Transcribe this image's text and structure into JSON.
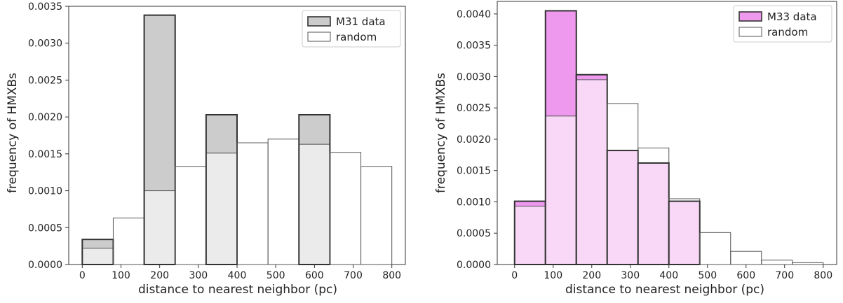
{
  "chart_data": [
    {
      "type": "bar",
      "bin_edges": [
        0,
        80,
        160,
        240,
        320,
        400,
        480,
        560,
        640,
        720,
        800
      ],
      "xlabel": "distance to nearest neighbor (pc)",
      "ylabel": "frequency of HMXBs",
      "xlim": [
        -35,
        835
      ],
      "ylim": [
        0,
        0.0035
      ],
      "xticks": [
        0,
        100,
        200,
        300,
        400,
        500,
        600,
        700,
        800
      ],
      "xtick_labels": [
        "0",
        "100",
        "200",
        "300",
        "400",
        "500",
        "600",
        "700",
        "800"
      ],
      "yticks": [
        0,
        0.0005,
        0.001,
        0.0015,
        0.002,
        0.0025,
        0.003,
        0.0035
      ],
      "ytick_labels": [
        "0.0000",
        "0.0005",
        "0.0010",
        "0.0015",
        "0.0020",
        "0.0025",
        "0.0030",
        "0.0035"
      ],
      "legend_position": "top-right",
      "grid": false,
      "series": [
        {
          "name": "M31 data",
          "values": [
            0.00034,
            0,
            0.00338,
            0,
            0.00203,
            0,
            0,
            0.00203,
            0,
            0
          ],
          "color": "#cccccc",
          "edge": "#333333"
        },
        {
          "name": "random",
          "values": [
            0.00022,
            0.00063,
            0.001,
            0.00133,
            0.00151,
            0.00165,
            0.0017,
            0.00163,
            0.00152,
            0.00133
          ],
          "color": "#ffffff",
          "edge": "#555555"
        }
      ],
      "overlap_color": "#ebebeb"
    },
    {
      "type": "bar",
      "bin_edges": [
        0,
        80,
        160,
        240,
        320,
        400,
        480,
        560,
        640,
        720,
        800
      ],
      "xlabel": "distance to nearest neighbor (pc)",
      "ylabel": "frequency of HMXBs",
      "xlim": [
        -45,
        835
      ],
      "ylim": [
        0,
        0.0042
      ],
      "xticks": [
        0,
        100,
        200,
        300,
        400,
        500,
        600,
        700,
        800
      ],
      "xtick_labels": [
        "0",
        "100",
        "200",
        "300",
        "400",
        "500",
        "600",
        "700",
        "800"
      ],
      "yticks": [
        0,
        0.0005,
        0.001,
        0.0015,
        0.002,
        0.0025,
        0.003,
        0.0035,
        0.004
      ],
      "ytick_labels": [
        "0.0000",
        "0.0005",
        "0.0010",
        "0.0015",
        "0.0020",
        "0.0025",
        "0.0030",
        "0.0035",
        "0.0040"
      ],
      "legend_position": "top-right",
      "grid": false,
      "series": [
        {
          "name": "M33 data",
          "values": [
            0.00101,
            0.00405,
            0.00303,
            0.00182,
            0.00162,
            0.00101,
            0,
            0,
            0,
            0
          ],
          "color": "#ee98ee",
          "edge": "#333333"
        },
        {
          "name": "random",
          "values": [
            0.00093,
            0.00237,
            0.00295,
            0.00257,
            0.00186,
            0.00105,
            0.00051,
            0.00021,
            7e-05,
            3e-05
          ],
          "color": "#ffffff",
          "edge": "#555555"
        }
      ],
      "overlap_color": "#f8d8f6"
    }
  ]
}
